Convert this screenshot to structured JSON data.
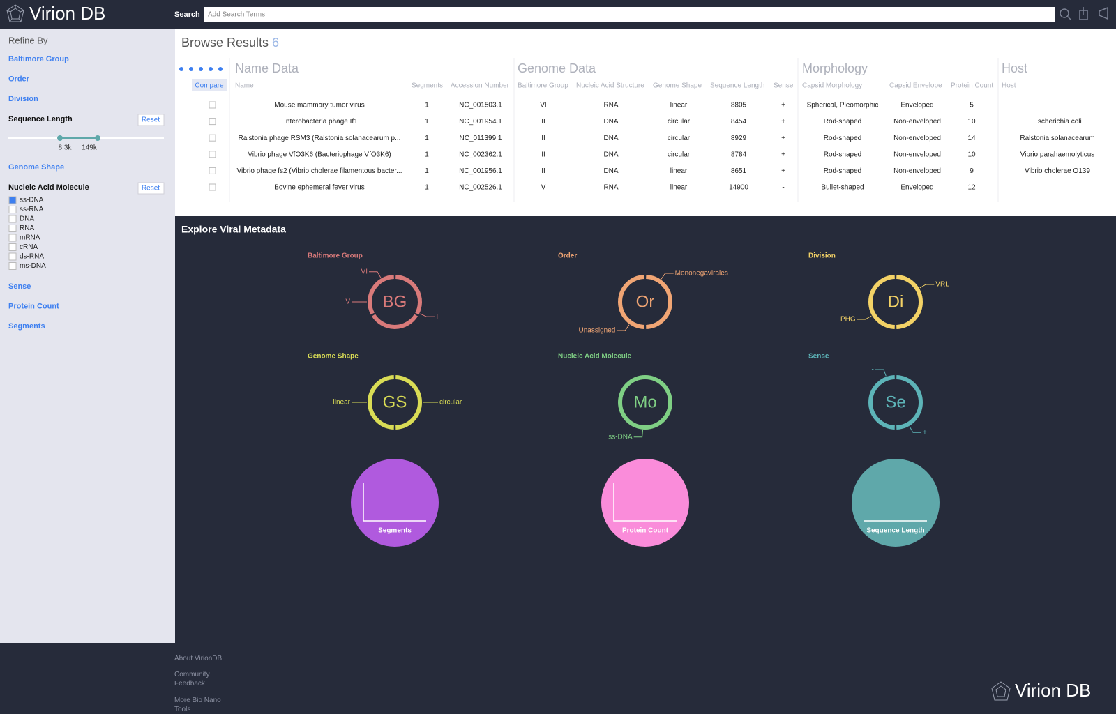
{
  "header": {
    "logo": "Virion DB",
    "search_label": "Search",
    "search_placeholder": "Add Search Terms"
  },
  "sidebar": {
    "title": "Refine By",
    "filters_top": [
      "Baltimore Group",
      "Order",
      "Division"
    ],
    "sequence_length": {
      "label": "Sequence Length",
      "reset": "Reset",
      "min_label": "8.3k",
      "max_label": "149k"
    },
    "filters_mid": [
      "Genome Shape"
    ],
    "nucleic_acid": {
      "label": "Nucleic Acid Molecule",
      "reset": "Reset",
      "options": [
        "ss-DNA",
        "ss-RNA",
        "DNA",
        "RNA",
        "mRNA",
        "cRNA",
        "ds-RNA",
        "ms-DNA"
      ],
      "checked": [
        true,
        false,
        false,
        false,
        false,
        false,
        false,
        false
      ]
    },
    "filters_bottom": [
      "Sense",
      "Protein Count",
      "Segments"
    ]
  },
  "results": {
    "title": "Browse Results",
    "count": 6,
    "compare": "Compare",
    "groups": [
      {
        "title": "Name Data",
        "columns": [
          "Name",
          "Segments",
          "Accession Number"
        ]
      },
      {
        "title": "Genome Data",
        "columns": [
          "Baltimore Group",
          "Nucleic Acid Structure",
          "Genome Shape",
          "Sequence Length",
          "Sense"
        ]
      },
      {
        "title": "Morphology",
        "columns": [
          "Capsid Morphology",
          "Capsid Envelope",
          "Protein Count"
        ]
      },
      {
        "title": "Host",
        "columns": [
          "Host"
        ]
      }
    ],
    "rows": [
      [
        "Mouse mammary tumor virus",
        1,
        "NC_001503.1",
        "VI",
        "RNA",
        "linear",
        8805,
        "+",
        "Spherical, Pleomorphic",
        "Enveloped",
        5,
        null
      ],
      [
        "Enterobacteria phage If1",
        1,
        "NC_001954.1",
        "II",
        "DNA",
        "circular",
        8454,
        "+",
        "Rod-shaped",
        "Non-enveloped",
        10,
        "Escherichia coli"
      ],
      [
        "Ralstonia phage RSM3 (Ralstonia solanacearum p...",
        1,
        "NC_011399.1",
        "II",
        "DNA",
        "circular",
        8929,
        "+",
        "Rod-shaped",
        "Non-enveloped",
        14,
        "Ralstonia solanacearum"
      ],
      [
        "Vibrio phage VfO3K6 (Bacteriophage VfO3K6)",
        1,
        "NC_002362.1",
        "II",
        "DNA",
        "circular",
        8784,
        "+",
        "Rod-shaped",
        "Non-enveloped",
        10,
        "Vibrio parahaemolyticus"
      ],
      [
        "Vibrio phage fs2 (Vibrio cholerae filamentous bacter...",
        1,
        "NC_001956.1",
        "II",
        "DNA",
        "linear",
        8651,
        "+",
        "Rod-shaped",
        "Non-enveloped",
        9,
        "Vibrio cholerae O139"
      ],
      [
        "Bovine ephemeral fever virus",
        1,
        "NC_002526.1",
        "V",
        "RNA",
        "linear",
        14900,
        "-",
        "Bullet-shaped",
        "Enveloped",
        12,
        null
      ]
    ]
  },
  "explore": {
    "title": "Explore Viral Metadata",
    "donuts": [
      {
        "title": "Baltimore Group",
        "abbr": "BG",
        "color": "#d97a7a",
        "labels": [
          "VI",
          "V",
          "II"
        ]
      },
      {
        "title": "Order",
        "abbr": "Or",
        "color": "#f0a574",
        "labels": [
          "Mononegavirales",
          "Unassigned"
        ]
      },
      {
        "title": "Division",
        "abbr": "Di",
        "color": "#f3d266",
        "labels": [
          "VRL",
          "PHG"
        ]
      },
      {
        "title": "Genome Shape",
        "abbr": "GS",
        "color": "#d9dc55",
        "labels": [
          "linear",
          "circular"
        ]
      },
      {
        "title": "Nucleic Acid Molecule",
        "abbr": "Mo",
        "color": "#7fcf84",
        "labels": [
          "ss-DNA"
        ]
      },
      {
        "title": "Sense",
        "abbr": "Se",
        "color": "#5db4b8",
        "labels": [
          "-",
          "+"
        ]
      }
    ],
    "bubbles": [
      {
        "label": "Segments",
        "color": "#b05ade"
      },
      {
        "label": "Protein Count",
        "color": "#fa8cda"
      },
      {
        "label": "Sequence Length",
        "color": "#5fa8aa"
      }
    ]
  },
  "footer": {
    "links": [
      "About VirionDB",
      "Community Feedback",
      "More Bio Nano Tools"
    ],
    "logo": "Virion DB"
  }
}
